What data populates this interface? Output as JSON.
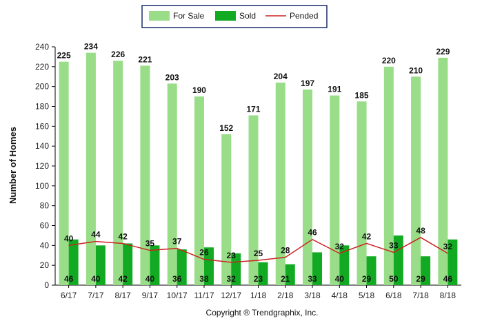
{
  "chart_data": {
    "type": "bar",
    "categories": [
      "6/17",
      "7/17",
      "8/17",
      "9/17",
      "10/17",
      "11/17",
      "12/17",
      "1/18",
      "2/18",
      "3/18",
      "4/18",
      "5/18",
      "6/18",
      "7/18",
      "8/18"
    ],
    "series": [
      {
        "name": "For Sale",
        "type": "bar",
        "color": "#99dd88",
        "values": [
          225,
          234,
          226,
          221,
          203,
          190,
          152,
          171,
          204,
          197,
          191,
          185,
          220,
          210,
          229
        ]
      },
      {
        "name": "Sold",
        "type": "bar",
        "color": "#11aa22",
        "values": [
          46,
          40,
          42,
          40,
          36,
          38,
          32,
          23,
          21,
          33,
          40,
          29,
          50,
          29,
          46
        ]
      },
      {
        "name": "Pended",
        "type": "line",
        "color": "#cc2222",
        "values": [
          40,
          44,
          42,
          35,
          37,
          26,
          23,
          25,
          28,
          46,
          32,
          42,
          33,
          48,
          32
        ]
      }
    ],
    "ylabel": "Number of Homes",
    "ylim": [
      0,
      240
    ],
    "yticks": [
      0,
      20,
      40,
      60,
      80,
      100,
      120,
      140,
      160,
      180,
      200,
      220,
      240
    ],
    "legend_position": "top-center",
    "grid": false
  },
  "footer": {
    "copyright": "Copyright ® Trendgraphix, Inc."
  }
}
